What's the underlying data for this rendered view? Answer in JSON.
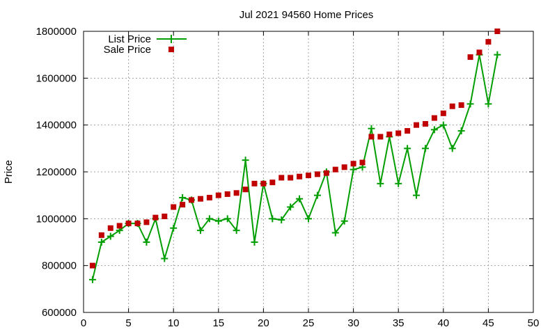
{
  "chart_data": {
    "type": "line",
    "title": "Jul 2021 94560 Home Prices",
    "xlabel": "",
    "ylabel": "Price",
    "xlim": [
      0,
      50
    ],
    "ylim": [
      600000,
      1800000
    ],
    "x_ticks": [
      0,
      5,
      10,
      15,
      20,
      25,
      30,
      35,
      40,
      45,
      50
    ],
    "y_ticks": [
      600000,
      800000,
      1000000,
      1200000,
      1400000,
      1600000,
      1800000
    ],
    "grid": true,
    "legend_position": "top-left",
    "colors": {
      "list": "#009e00",
      "sale": "#c00000"
    },
    "x": [
      1,
      2,
      3,
      4,
      5,
      6,
      7,
      8,
      9,
      10,
      11,
      12,
      13,
      14,
      15,
      16,
      17,
      18,
      19,
      20,
      21,
      22,
      23,
      24,
      25,
      26,
      27,
      28,
      29,
      30,
      31,
      32,
      33,
      34,
      35,
      36,
      37,
      38,
      39,
      40,
      41,
      42,
      43,
      44,
      45,
      46
    ],
    "series": [
      {
        "name": "List Price",
        "style": "line-plus",
        "values": [
          740000,
          900000,
          925000,
          950000,
          980000,
          980000,
          900000,
          1000000,
          830000,
          960000,
          1090000,
          1080000,
          950000,
          1000000,
          990000,
          1000000,
          950000,
          1250000,
          900000,
          1150000,
          1000000,
          995000,
          1050000,
          1085000,
          1000000,
          1100000,
          1200000,
          940000,
          990000,
          1210000,
          1220000,
          1385000,
          1150000,
          1350000,
          1150000,
          1300000,
          1100000,
          1300000,
          1380000,
          1400000,
          1300000,
          1375000,
          1490000,
          1700000,
          1490000,
          1700000
        ]
      },
      {
        "name": "Sale Price",
        "style": "square-points",
        "values": [
          800000,
          930000,
          960000,
          970000,
          980000,
          980000,
          985000,
          1005000,
          1010000,
          1050000,
          1060000,
          1080000,
          1085000,
          1090000,
          1100000,
          1105000,
          1110000,
          1125000,
          1150000,
          1150000,
          1155000,
          1175000,
          1175000,
          1180000,
          1185000,
          1190000,
          1195000,
          1210000,
          1220000,
          1235000,
          1240000,
          1350000,
          1350000,
          1360000,
          1365000,
          1375000,
          1400000,
          1405000,
          1430000,
          1450000,
          1480000,
          1485000,
          1690000,
          1710000,
          1755000,
          1800000
        ]
      }
    ]
  }
}
